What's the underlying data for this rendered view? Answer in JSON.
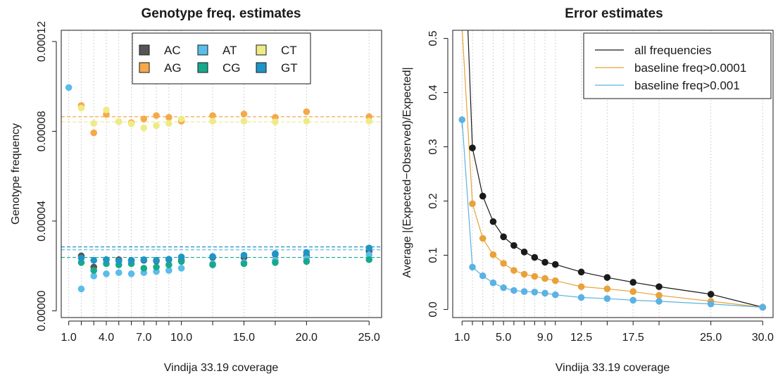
{
  "chart_data": [
    {
      "type": "scatter",
      "title": "Genotype freq. estimates",
      "xlabel": "Vindija 33.19 coverage",
      "ylabel": "Genotype frequency",
      "xlim": [
        0.4,
        26.0
      ],
      "ylim": [
        -3e-06,
        0.000125
      ],
      "x_tick_labels": [
        "1.0",
        "4.0",
        "7.0",
        "10.0",
        "15.0",
        "20.0",
        "25.0"
      ],
      "x_tick_values": [
        1,
        4,
        7,
        10,
        15,
        20,
        25
      ],
      "x_minor_ticks": [
        1,
        2,
        3,
        4,
        5,
        6,
        7,
        8,
        9,
        10,
        12.5,
        15,
        17.5,
        20,
        25
      ],
      "y_tick_labels": [
        "0.00000",
        "0.00004",
        "0.00008",
        "0.00012"
      ],
      "y_tick_values": [
        0,
        4e-05,
        8e-05,
        0.00012
      ],
      "grid": "vertical dotted",
      "legend_position": "top",
      "x": [
        1,
        2,
        3,
        4,
        5,
        6,
        7,
        8,
        9,
        10,
        12.5,
        15,
        17.5,
        20,
        25
      ],
      "series": [
        {
          "name": "AC",
          "color": "#555555",
          "values": [
            null,
            2.45e-05,
            1.95e-05,
            2.28e-05,
            2.28e-05,
            2.25e-05,
            2.25e-05,
            2.22e-05,
            2.28e-05,
            2.25e-05,
            2.38e-05,
            2.38e-05,
            2.52e-05,
            2.45e-05,
            2.65e-05
          ],
          "reference": null
        },
        {
          "name": "AG",
          "color": "#f5a94a",
          "values": [
            null,
            9.15e-05,
            7.93e-05,
            8.75e-05,
            8.43e-05,
            8.38e-05,
            8.55e-05,
            8.7e-05,
            8.62e-05,
            8.45e-05,
            8.7e-05,
            8.77e-05,
            8.62e-05,
            8.87e-05,
            8.65e-05
          ],
          "reference": 8.65e-05
        },
        {
          "name": "AT",
          "color": "#5bbde8",
          "values": [
            9.95e-05,
            9.75e-06,
            1.55e-05,
            1.65e-05,
            1.7e-05,
            1.65e-05,
            1.7e-05,
            1.75e-05,
            1.8e-05,
            1.9e-05,
            2.1e-05,
            2.15e-05,
            2.25e-05,
            2.35e-05,
            2.5e-05
          ],
          "reference": 2.72e-05
        },
        {
          "name": "CG",
          "color": "#17a98c",
          "values": [
            null,
            2.15e-05,
            1.8e-05,
            2.1e-05,
            2.05e-05,
            2.1e-05,
            1.9e-05,
            1.95e-05,
            2.05e-05,
            2.2e-05,
            2.05e-05,
            2.1e-05,
            2.15e-05,
            2.2e-05,
            2.28e-05
          ],
          "reference": 2.38e-05
        },
        {
          "name": "CT",
          "color": "#eeea88",
          "values": [
            null,
            9.03e-05,
            8.35e-05,
            8.95e-05,
            8.43e-05,
            8.33e-05,
            8.15e-05,
            8.25e-05,
            8.35e-05,
            8.55e-05,
            8.45e-05,
            8.45e-05,
            8.42e-05,
            8.45e-05,
            8.45e-05
          ],
          "reference": 8.42e-05
        },
        {
          "name": "GT",
          "color": "#1f95c7",
          "values": [
            null,
            2.35e-05,
            2.25e-05,
            2.28e-05,
            2.22e-05,
            2.25e-05,
            2.28e-05,
            2.25e-05,
            2.3e-05,
            2.4e-05,
            2.42e-05,
            2.48e-05,
            2.55e-05,
            2.6e-05,
            2.8e-05
          ],
          "reference": 2.85e-05
        }
      ]
    },
    {
      "type": "line",
      "title": "Error estimates",
      "xlabel": "Vindija 33.19 coverage",
      "ylabel": "Average |(Expected−Observed)/Expected|",
      "xlim": [
        0.1,
        31.0
      ],
      "ylim": [
        -0.015,
        0.515
      ],
      "x_tick_labels": [
        "1.0",
        "5.0",
        "9.0",
        "12.5",
        "17.5",
        "25.0",
        "30.0"
      ],
      "x_tick_values": [
        1,
        5,
        9,
        12.5,
        17.5,
        25,
        30
      ],
      "x_minor_ticks": [
        1,
        2,
        3,
        4,
        5,
        6,
        7,
        8,
        9,
        10,
        12.5,
        15,
        17.5,
        20,
        25,
        30
      ],
      "y_tick_labels": [
        "0.0",
        "0.1",
        "0.2",
        "0.3",
        "0.4",
        "0.5"
      ],
      "y_tick_values": [
        0,
        0.1,
        0.2,
        0.3,
        0.4,
        0.5
      ],
      "grid": "vertical dotted",
      "legend_position": "top-right",
      "x": [
        1,
        2,
        3,
        4,
        5,
        6,
        7,
        8,
        9,
        10,
        12.5,
        15,
        17.5,
        20,
        25,
        30
      ],
      "series": [
        {
          "name": "all frequencies",
          "color": "#1a1a1a",
          "line_start": [
            1,
            0.8
          ],
          "values": [
            null,
            0.298,
            0.209,
            0.162,
            0.134,
            0.118,
            0.106,
            0.096,
            0.087,
            0.083,
            0.069,
            0.059,
            0.05,
            0.042,
            0.028,
            0.004
          ]
        },
        {
          "name": "baseline freq>0.0001",
          "color": "#e8a23a",
          "line_start": [
            1,
            0.52
          ],
          "values": [
            null,
            0.195,
            0.131,
            0.101,
            0.085,
            0.072,
            0.065,
            0.061,
            0.057,
            0.053,
            0.042,
            0.038,
            0.033,
            0.026,
            0.015,
            0.004
          ]
        },
        {
          "name": "baseline freq>0.001",
          "color": "#5bb2e3",
          "line_start": [
            1,
            0.335
          ],
          "values": [
            0.35,
            0.078,
            0.062,
            0.049,
            0.04,
            0.035,
            0.033,
            0.032,
            0.03,
            0.027,
            0.022,
            0.02,
            0.017,
            0.015,
            0.01,
            0.004
          ]
        }
      ]
    }
  ]
}
